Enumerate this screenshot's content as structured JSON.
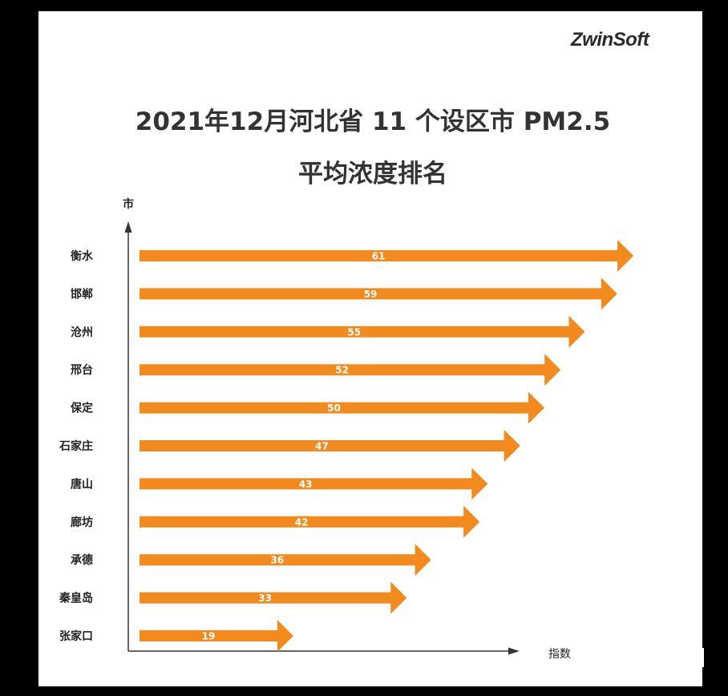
{
  "logo": {
    "text": "ZwinSoft"
  },
  "colors": {
    "bar": "#f28a1e",
    "axis": "#333333",
    "background": "#ffffff",
    "frame": "#000000"
  },
  "chart_data": {
    "type": "bar",
    "orientation": "horizontal",
    "title_line1": "2021年12月河北省 11 个设区市 PM2.5",
    "title_line2": "平均浓度排名",
    "ylabel": "市",
    "xlabel": "指数",
    "categories": [
      "衡水",
      "邯郸",
      "沧州",
      "邢台",
      "保定",
      "石家庄",
      "唐山",
      "廊坊",
      "承德",
      "秦皇岛",
      "张家口"
    ],
    "values": [
      61,
      59,
      55,
      52,
      50,
      47,
      43,
      42,
      36,
      33,
      19
    ],
    "data_labels": [
      "61",
      "59",
      "55",
      "52",
      "50",
      "47",
      "43",
      "42",
      "36",
      "33",
      "19"
    ],
    "grid": false,
    "legend": "none"
  }
}
